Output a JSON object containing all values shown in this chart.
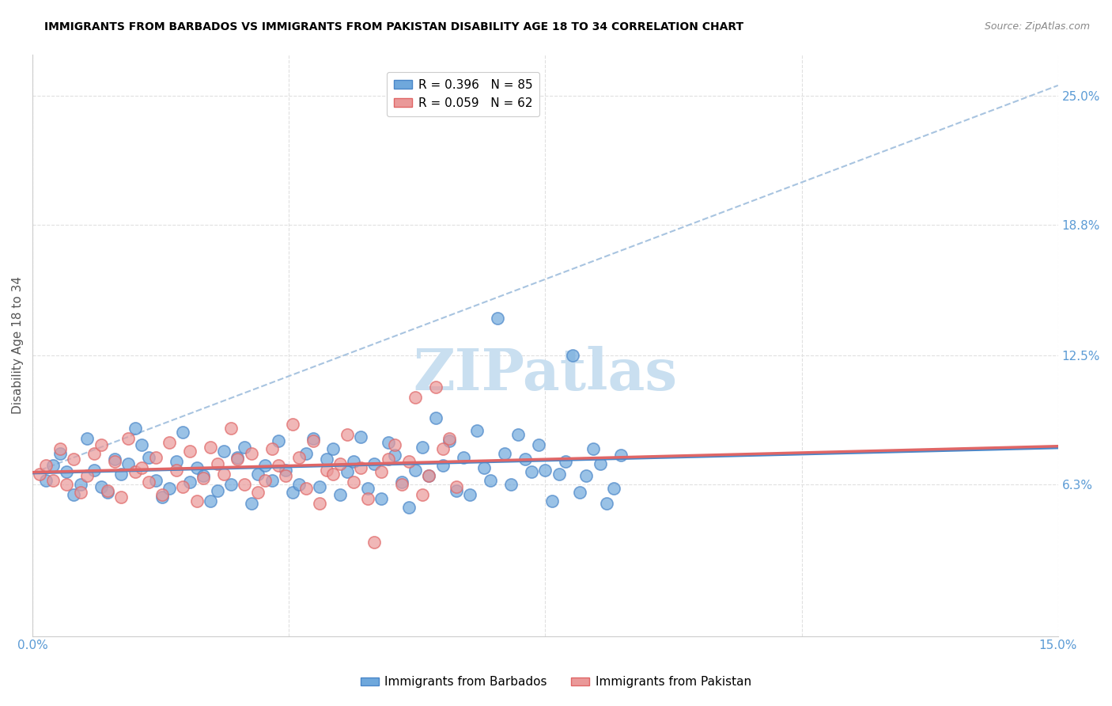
{
  "title": "IMMIGRANTS FROM BARBADOS VS IMMIGRANTS FROM PAKISTAN DISABILITY AGE 18 TO 34 CORRELATION CHART",
  "source": "Source: ZipAtlas.com",
  "xlabel_bottom": "",
  "ylabel": "Disability Age 18 to 34",
  "x_tick_labels": [
    "0.0%",
    "15.0%"
  ],
  "x_tick_positions": [
    0.0,
    15.0
  ],
  "y_tick_labels_right": [
    "6.3%",
    "12.5%",
    "18.8%",
    "25.0%"
  ],
  "y_tick_values_right": [
    6.3,
    12.5,
    18.8,
    25.0
  ],
  "xlim": [
    0.0,
    15.0
  ],
  "ylim": [
    -1.0,
    27.0
  ],
  "barbados_color": "#6fa8dc",
  "pakistan_color": "#ea9999",
  "barbados_edge": "#4a86c8",
  "pakistan_edge": "#e06666",
  "barbados_R": 0.396,
  "barbados_N": 85,
  "pakistan_R": 0.059,
  "pakistan_N": 62,
  "trend_blue": "#4a86c8",
  "trend_pink": "#e06666",
  "dashed_line_color": "#a8c4e0",
  "watermark_text": "ZIPatlas",
  "watermark_color": "#c9dff0",
  "legend_label_barbados": "Immigrants from Barbados",
  "legend_label_pakistan": "Immigrants from Pakistan",
  "background_color": "#ffffff",
  "grid_color": "#e0e0e0",
  "title_color": "#000000",
  "axis_label_color": "#5b9bd5",
  "barbados_x": [
    0.2,
    0.3,
    0.4,
    0.5,
    0.6,
    0.7,
    0.8,
    0.9,
    1.0,
    1.1,
    1.2,
    1.3,
    1.4,
    1.5,
    1.6,
    1.7,
    1.8,
    1.9,
    2.0,
    2.1,
    2.2,
    2.3,
    2.4,
    2.5,
    2.6,
    2.7,
    2.8,
    2.9,
    3.0,
    3.1,
    3.2,
    3.3,
    3.4,
    3.5,
    3.6,
    3.7,
    3.8,
    3.9,
    4.0,
    4.1,
    4.2,
    4.3,
    4.4,
    4.5,
    4.6,
    4.7,
    4.8,
    4.9,
    5.0,
    5.1,
    5.2,
    5.3,
    5.4,
    5.5,
    5.6,
    5.7,
    5.8,
    5.9,
    6.0,
    6.1,
    6.2,
    6.3,
    6.4,
    6.5,
    6.6,
    6.7,
    6.8,
    6.9,
    7.0,
    7.1,
    7.2,
    7.3,
    7.4,
    7.5,
    7.6,
    7.7,
    7.8,
    7.9,
    8.0,
    8.1,
    8.2,
    8.3,
    8.4,
    8.5,
    8.6
  ],
  "barbados_y": [
    6.5,
    7.2,
    7.8,
    6.9,
    5.8,
    6.3,
    8.5,
    7.0,
    6.2,
    5.9,
    7.5,
    6.8,
    7.3,
    9.0,
    8.2,
    7.6,
    6.5,
    5.7,
    6.1,
    7.4,
    8.8,
    6.4,
    7.1,
    6.7,
    5.5,
    6.0,
    7.9,
    6.3,
    7.6,
    8.1,
    5.4,
    6.8,
    7.2,
    6.5,
    8.4,
    7.0,
    5.9,
    6.3,
    7.8,
    8.5,
    6.2,
    7.5,
    8.0,
    5.8,
    6.9,
    7.4,
    8.6,
    6.1,
    7.3,
    5.6,
    8.3,
    7.7,
    6.4,
    5.2,
    7.0,
    8.1,
    6.7,
    9.5,
    7.2,
    8.4,
    6.0,
    7.6,
    5.8,
    8.9,
    7.1,
    6.5,
    14.3,
    7.8,
    6.3,
    8.7,
    7.5,
    6.9,
    8.2,
    7.0,
    5.5,
    6.8,
    7.4,
    12.5,
    5.9,
    6.7,
    8.0,
    7.3,
    5.4,
    6.1,
    7.7
  ],
  "pakistan_x": [
    0.1,
    0.2,
    0.3,
    0.4,
    0.5,
    0.6,
    0.7,
    0.8,
    0.9,
    1.0,
    1.1,
    1.2,
    1.3,
    1.4,
    1.5,
    1.6,
    1.7,
    1.8,
    1.9,
    2.0,
    2.1,
    2.2,
    2.3,
    2.4,
    2.5,
    2.6,
    2.7,
    2.8,
    2.9,
    3.0,
    3.1,
    3.2,
    3.3,
    3.4,
    3.5,
    3.6,
    3.7,
    3.8,
    3.9,
    4.0,
    4.1,
    4.2,
    4.3,
    4.4,
    4.5,
    4.6,
    4.7,
    4.8,
    4.9,
    5.0,
    5.1,
    5.2,
    5.3,
    5.4,
    5.5,
    5.6,
    5.7,
    5.8,
    5.9,
    6.0,
    6.1,
    6.2
  ],
  "pakistan_y": [
    6.8,
    7.2,
    6.5,
    8.0,
    6.3,
    7.5,
    5.9,
    6.7,
    7.8,
    8.2,
    6.0,
    7.4,
    5.7,
    8.5,
    6.9,
    7.1,
    6.4,
    7.6,
    5.8,
    8.3,
    7.0,
    6.2,
    7.9,
    5.5,
    6.6,
    8.1,
    7.3,
    6.8,
    9.0,
    7.5,
    6.3,
    7.8,
    5.9,
    6.5,
    8.0,
    7.2,
    6.7,
    9.2,
    7.6,
    6.1,
    8.4,
    5.4,
    7.0,
    6.8,
    7.3,
    8.7,
    6.4,
    7.1,
    5.6,
    3.5,
    6.9,
    7.5,
    8.2,
    6.3,
    7.4,
    10.5,
    5.8,
    6.7,
    11.0,
    8.0,
    8.5,
    6.2
  ]
}
